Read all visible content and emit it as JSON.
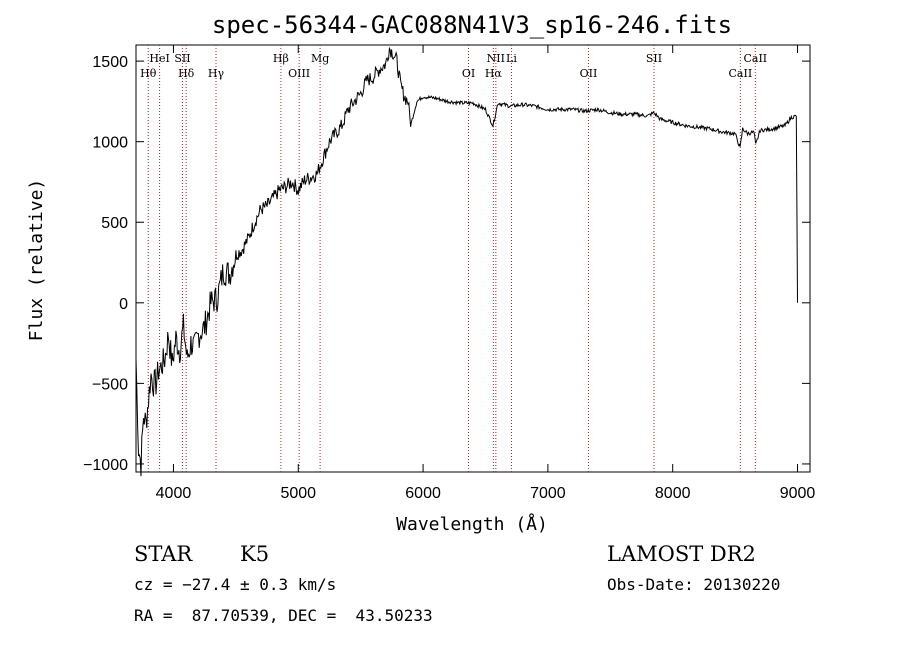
{
  "chart_data": {
    "type": "line",
    "title": "spec-56344-GAC088N41V3_sp16-246.fits",
    "xlabel": "Wavelength (Å)",
    "ylabel": "Flux (relative)",
    "xlim": [
      3700,
      9100
    ],
    "ylim": [
      -1050,
      1600
    ],
    "xticks": [
      4000,
      5000,
      6000,
      7000,
      8000,
      9000
    ],
    "yticks": [
      -1000,
      -500,
      0,
      500,
      1000,
      1500
    ],
    "series": [
      {
        "name": "spectrum",
        "x": [
          3700,
          3720,
          3740,
          3760,
          3780,
          3800,
          3820,
          3840,
          3860,
          3880,
          3900,
          3930,
          3960,
          3990,
          4020,
          4050,
          4080,
          4110,
          4140,
          4170,
          4200,
          4250,
          4300,
          4350,
          4400,
          4450,
          4500,
          4550,
          4600,
          4650,
          4700,
          4750,
          4800,
          4850,
          4900,
          4950,
          5000,
          5050,
          5100,
          5150,
          5200,
          5250,
          5300,
          5350,
          5400,
          5450,
          5500,
          5550,
          5600,
          5650,
          5700,
          5730,
          5760,
          5790,
          5820,
          5850,
          5880,
          5900,
          5950,
          6000,
          6100,
          6200,
          6300,
          6400,
          6500,
          6560,
          6600,
          6700,
          6800,
          6900,
          7000,
          7100,
          7200,
          7300,
          7400,
          7500,
          7600,
          7700,
          7800,
          7850,
          7900,
          8000,
          8100,
          8200,
          8300,
          8400,
          8500,
          8540,
          8560,
          8600,
          8650,
          8665,
          8700,
          8800,
          8900,
          8950,
          8990,
          9000
        ],
        "y": [
          -350,
          -900,
          -1000,
          -700,
          -750,
          -600,
          -450,
          -500,
          -500,
          -420,
          -400,
          -350,
          -200,
          -380,
          -220,
          -300,
          -150,
          -350,
          -250,
          -280,
          -200,
          -150,
          0,
          30,
          200,
          180,
          300,
          330,
          400,
          500,
          580,
          600,
          650,
          700,
          720,
          750,
          700,
          760,
          780,
          800,
          900,
          1000,
          1050,
          1100,
          1200,
          1250,
          1300,
          1380,
          1400,
          1450,
          1480,
          1580,
          1550,
          1500,
          1350,
          1280,
          1250,
          1100,
          1250,
          1280,
          1270,
          1250,
          1240,
          1240,
          1200,
          1100,
          1240,
          1220,
          1230,
          1220,
          1200,
          1200,
          1200,
          1190,
          1200,
          1180,
          1170,
          1170,
          1160,
          1180,
          1140,
          1120,
          1100,
          1090,
          1080,
          1060,
          1050,
          960,
          1080,
          1050,
          1060,
          980,
          1070,
          1080,
          1100,
          1150,
          1160,
          0
        ]
      }
    ],
    "lines": [
      {
        "label": "Hθ",
        "x": 3798
      },
      {
        "label": "HeI",
        "x": 3889
      },
      {
        "label": "Hδ",
        "x": 4102
      },
      {
        "label": "SII",
        "x": 4072
      },
      {
        "label": "Hγ",
        "x": 4341
      },
      {
        "label": "Hβ",
        "x": 4861
      },
      {
        "label": "OIII",
        "x": 5007
      },
      {
        "label": "Mg",
        "x": 5175
      },
      {
        "label": "OI",
        "x": 6364
      },
      {
        "label": "NII",
        "x": 6583
      },
      {
        "label": "Hα",
        "x": 6563
      },
      {
        "label": "Li",
        "x": 6708
      },
      {
        "label": "OII",
        "x": 7325
      },
      {
        "label": "SII",
        "x": 7850
      },
      {
        "label": "CaII",
        "x": 8542
      },
      {
        "label": "CaII",
        "x": 8662
      }
    ]
  },
  "info": {
    "class": "STAR",
    "subclass": "K5",
    "survey": "LAMOST DR2",
    "cz": "cz = −27.4 ± 0.3 km/s",
    "obs_date": "Obs-Date: 20130220",
    "coords": "RA =  87.70539, DEC =  43.50233"
  }
}
